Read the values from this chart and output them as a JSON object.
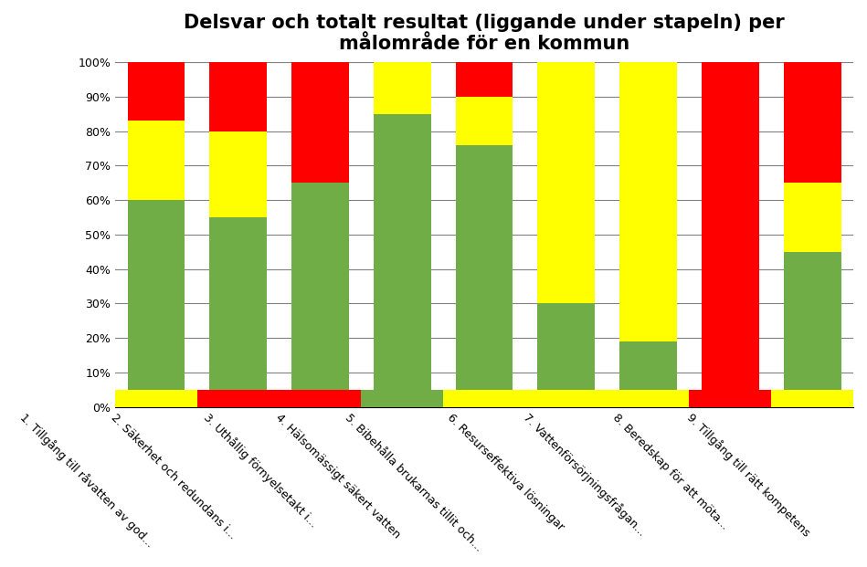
{
  "title": "Delsvar och totalt resultat (liggande under stapeln) per\nmålområde för en kommun",
  "categories": [
    "1. Tillgång till råvatten av god...",
    "2. Säkerhet och redundans i...",
    "3. Uthållig förnyelsetakt i...",
    "4. Hälsomässigt säkert vatten",
    "5. Bibehålla brukarnas tillit och...",
    "6. Resurseffektiva lösningar",
    "7. Vattenförsörjningsfrågan...",
    "8. Beredskap för att möta...",
    "9. Tillgång till rätt kompetens"
  ],
  "green": [
    55,
    50,
    60,
    80,
    71,
    25,
    14,
    0,
    40
  ],
  "yellow": [
    23,
    25,
    0,
    20,
    14,
    75,
    86,
    0,
    20
  ],
  "red": [
    22,
    25,
    40,
    0,
    15,
    0,
    0,
    100,
    40
  ],
  "bot_color": [
    "yellow",
    "red",
    "red",
    "green",
    "yellow",
    "yellow",
    "yellow",
    "red",
    "yellow"
  ],
  "color_green": "#70AD47",
  "color_yellow": "#FFFF00",
  "color_red": "#FF0000",
  "color_map": {
    "green": "#70AD47",
    "yellow": "#FFFF00",
    "red": "#FF0000"
  },
  "bar_width": 0.7,
  "bottom_bar_height": 5,
  "ylim": [
    0,
    100
  ],
  "yticks": [
    0,
    10,
    20,
    30,
    40,
    50,
    60,
    70,
    80,
    90,
    100
  ],
  "ytick_labels": [
    "0%",
    "10%",
    "20%",
    "30%",
    "40%",
    "50%",
    "60%",
    "70%",
    "80%",
    "90%",
    "100%"
  ],
  "title_fontsize": 15,
  "tick_fontsize": 9,
  "xlabel_rotation": -45,
  "bg_color": "#FFFFFF"
}
